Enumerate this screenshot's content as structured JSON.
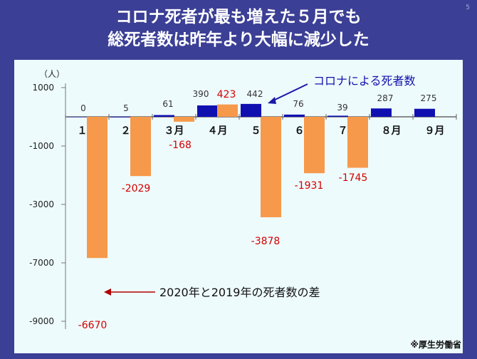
{
  "slide": {
    "page_number": "5",
    "title_line1": "コロナ死者が最も増えた５月でも",
    "title_line2": "総死者数は昨年より大幅に減少した",
    "source": "※厚生労働省"
  },
  "chart_data": {
    "type": "bar",
    "title": "",
    "xlabel": "",
    "ylabel": "（人）",
    "categories": [
      "１月",
      "２月",
      "３月",
      "４月",
      "５月",
      "６月",
      "７月",
      "８月",
      "９月"
    ],
    "y_tick_labels": [
      "1000",
      "-1000",
      "-3000",
      "-7000",
      "-9000"
    ],
    "series": [
      {
        "name": "コロナによる死者数",
        "color": "#1010b0",
        "label_color": "#333333",
        "values": [
          0,
          5,
          61,
          390,
          442,
          76,
          39,
          287,
          275
        ]
      },
      {
        "name": "2020年と2019年の死者数の差",
        "color": "#f7994b",
        "label_color": "#d40000",
        "values": [
          -6670,
          -2029,
          -168,
          423,
          -3878,
          -1931,
          -1745,
          null,
          null
        ]
      }
    ],
    "grid": false,
    "legend": "annotations with arrows"
  }
}
